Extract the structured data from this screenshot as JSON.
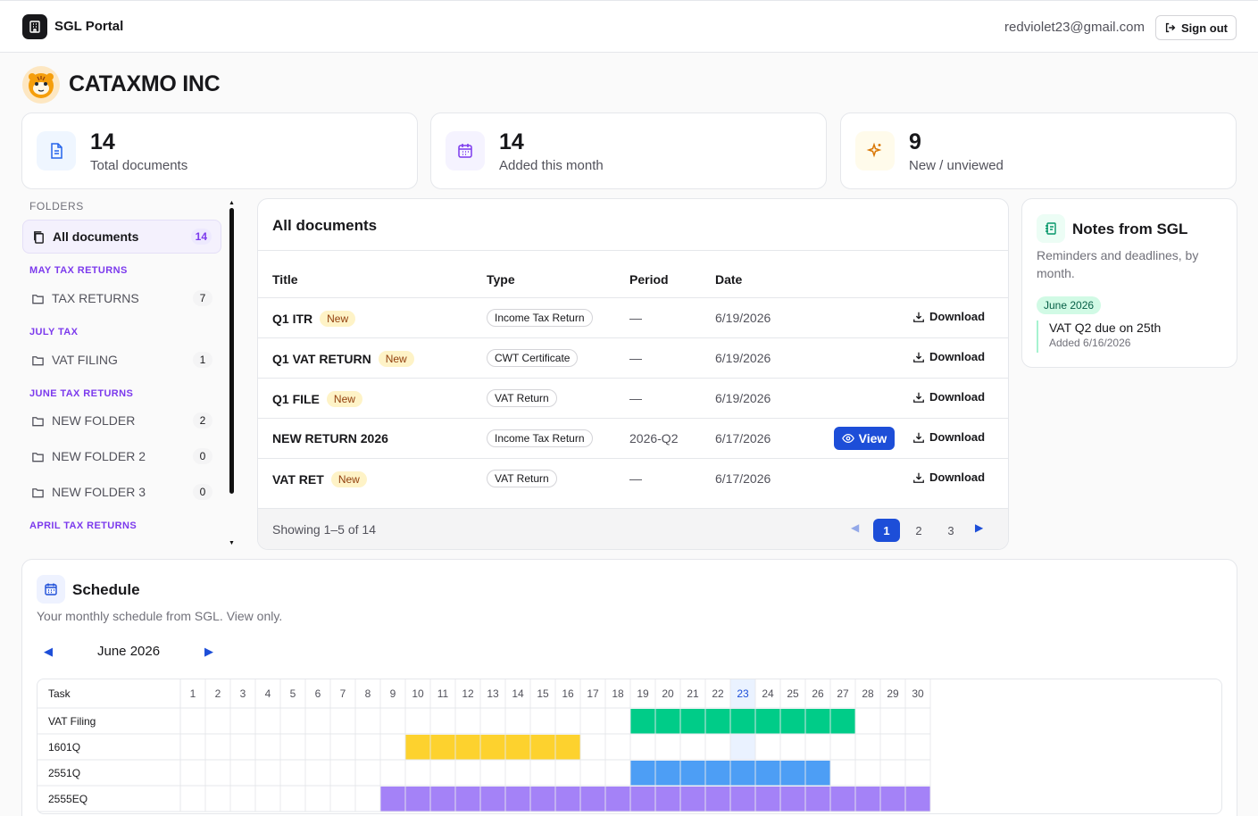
{
  "app": {
    "name": "SGL Portal",
    "user_email": "redviolet23@gmail.com",
    "sign_out_label": "Sign out"
  },
  "company": {
    "name": "CATAXMO INC"
  },
  "stats": [
    {
      "value": "14",
      "label": "Total documents",
      "icon": "document-icon"
    },
    {
      "value": "14",
      "label": "Added this month",
      "icon": "calendar-icon"
    },
    {
      "value": "9",
      "label": "New / unviewed",
      "icon": "sparkle-icon"
    }
  ],
  "folders": {
    "title": "FOLDERS",
    "all": {
      "label": "All documents",
      "count": "14"
    },
    "groups": [
      {
        "label": "MAY TAX RETURNS",
        "items": [
          {
            "label": "TAX RETURNS",
            "count": "7"
          }
        ]
      },
      {
        "label": "JULY TAX",
        "items": [
          {
            "label": "VAT FILING",
            "count": "1"
          }
        ]
      },
      {
        "label": "JUNE TAX RETURNS",
        "items": [
          {
            "label": "NEW FOLDER",
            "count": "2"
          },
          {
            "label": "NEW FOLDER 2",
            "count": "0"
          },
          {
            "label": "NEW FOLDER 3",
            "count": "0"
          }
        ]
      },
      {
        "label": "APRIL TAX RETURNS",
        "items": []
      }
    ]
  },
  "documents": {
    "title": "All documents",
    "columns": {
      "title": "Title",
      "type": "Type",
      "period": "Period",
      "date": "Date"
    },
    "new_label": "New",
    "view_label": "View",
    "download_label": "Download",
    "rows": [
      {
        "title": "Q1 ITR",
        "is_new": true,
        "type": "Income Tax Return",
        "period": "—",
        "date": "6/19/2026",
        "has_view": false
      },
      {
        "title": "Q1 VAT RETURN",
        "is_new": true,
        "type": "CWT Certificate",
        "period": "—",
        "date": "6/19/2026",
        "has_view": false
      },
      {
        "title": "Q1 FILE",
        "is_new": true,
        "type": "VAT Return",
        "period": "—",
        "date": "6/19/2026",
        "has_view": false
      },
      {
        "title": "NEW RETURN 2026",
        "is_new": false,
        "type": "Income Tax Return",
        "period": "2026-Q2",
        "date": "6/17/2026",
        "has_view": true
      },
      {
        "title": "VAT RET",
        "is_new": true,
        "type": "VAT Return",
        "period": "—",
        "date": "6/17/2026",
        "has_view": false
      }
    ],
    "showing": "Showing 1–5 of 14",
    "pages": [
      "1",
      "2",
      "3"
    ],
    "current_page": "1"
  },
  "notes": {
    "title": "Notes from SGL",
    "subtitle": "Reminders and deadlines, by month.",
    "month": "June 2026",
    "items": [
      {
        "text": "VAT Q2 due on 25th",
        "meta": "Added 6/16/2026"
      }
    ]
  },
  "schedule": {
    "title": "Schedule",
    "subtitle": "Your monthly schedule from SGL. View only.",
    "month_label": "June 2026",
    "task_header": "Task",
    "days": 30,
    "today": 23,
    "tasks": [
      {
        "name": "VAT Filing",
        "start": 19,
        "end": 27,
        "color": "#00cc88"
      },
      {
        "name": "1601Q",
        "start": 10,
        "end": 16,
        "color": "#fdd22e"
      },
      {
        "name": "2551Q",
        "start": 19,
        "end": 26,
        "color": "#4d9ef5"
      },
      {
        "name": "2555EQ",
        "start": 9,
        "end": 30,
        "color": "#a482f7"
      }
    ]
  },
  "colors": {
    "accent": "#1d4ed8",
    "purple": "#7c3aed",
    "today_bg": "#e6f0ff"
  }
}
